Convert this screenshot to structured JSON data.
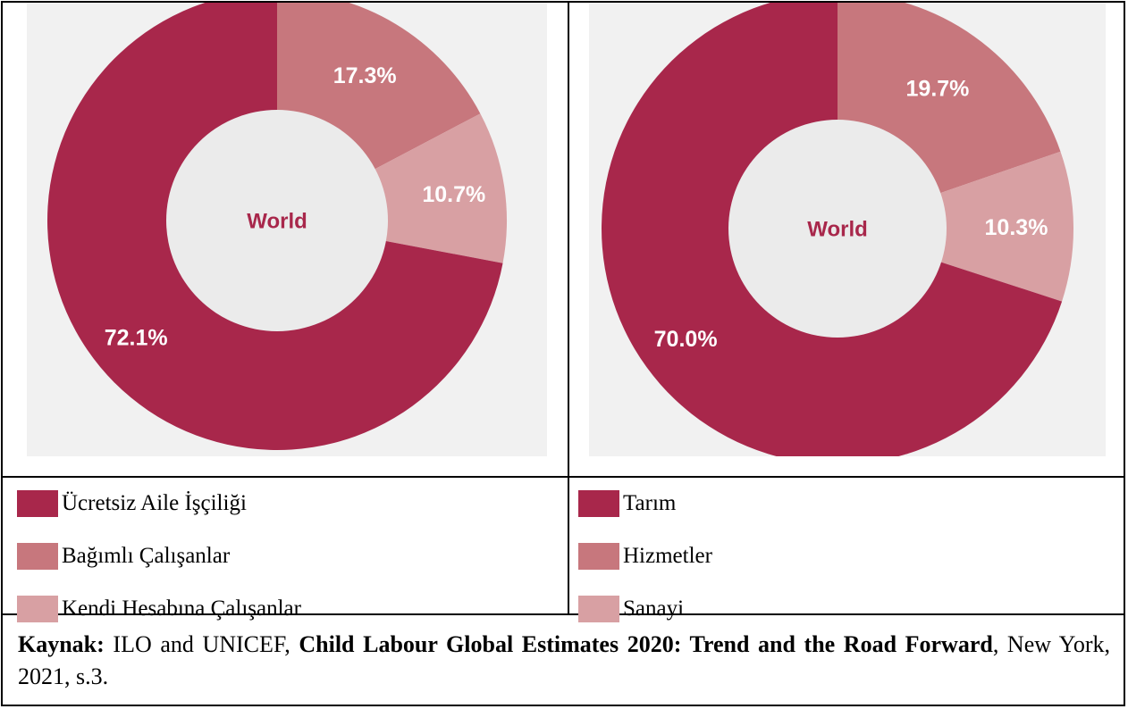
{
  "colors": {
    "dark": "#a8274b",
    "medium": "#c7777d",
    "light": "#d8a0a3",
    "hole": "#ebebeb",
    "center_text": "#a8274b",
    "panel_bg": "#f1f1f1"
  },
  "chart_data": [
    {
      "type": "pie",
      "donut": true,
      "center_label": "World",
      "slices": [
        {
          "label": "Bağımlı Çalışanlar",
          "value": 17.3,
          "display": "17.3%",
          "color": "#c7777d"
        },
        {
          "label": "Kendi Hesabına Çalışanlar",
          "value": 10.7,
          "display": "10.7%",
          "color": "#d8a0a3"
        },
        {
          "label": "Ücretsiz Aile İşçiliği",
          "value": 72.1,
          "display": "72.1%",
          "color": "#a8274b"
        }
      ]
    },
    {
      "type": "pie",
      "donut": true,
      "center_label": "World",
      "slices": [
        {
          "label": "Hizmetler",
          "value": 19.7,
          "display": "19.7%",
          "color": "#c7777d"
        },
        {
          "label": "Sanayi",
          "value": 10.3,
          "display": "10.3%",
          "color": "#d8a0a3"
        },
        {
          "label": "Tarım",
          "value": 70.0,
          "display": "70.0%",
          "color": "#a8274b"
        }
      ]
    }
  ],
  "legend_left": [
    {
      "label": "Ücretsiz Aile İşçiliği",
      "color": "#a8274b"
    },
    {
      "label": "Bağımlı Çalışanlar",
      "color": "#c7777d"
    },
    {
      "label": "Kendi Hesabına Çalışanlar",
      "color": "#d8a0a3"
    }
  ],
  "legend_right": [
    {
      "label": "Tarım",
      "color": "#a8274b"
    },
    {
      "label": "Hizmetler",
      "color": "#c7777d"
    },
    {
      "label": "Sanayi",
      "color": "#d8a0a3"
    }
  ],
  "source": {
    "prefix": "Kaynak:",
    "authors": " ILO and UNICEF, ",
    "title": "Child Labour Global Estimates 2020: Trend and the Road Forward",
    "details": ", New York, 2021, s.3."
  }
}
